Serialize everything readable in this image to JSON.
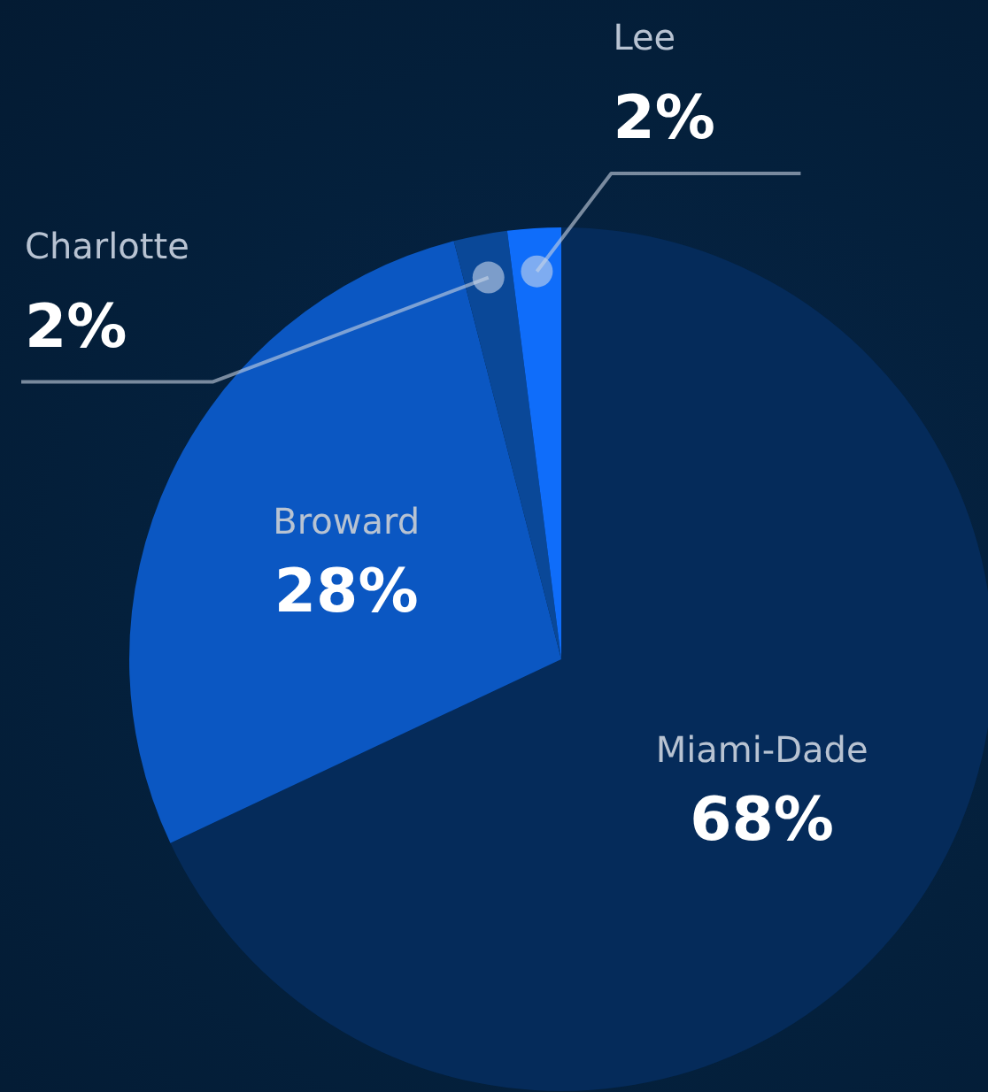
{
  "chart_data": {
    "type": "pie",
    "categories": [
      "Miami-Dade",
      "Broward",
      "Charlotte",
      "Lee"
    ],
    "values": [
      68,
      28,
      2,
      2
    ],
    "value_labels": [
      "68%",
      "28%",
      "2%",
      "2%"
    ],
    "colors": [
      "#052b5a",
      "#0b57c2",
      "#0a4898",
      "#0f6dfa"
    ],
    "legend": false
  }
}
